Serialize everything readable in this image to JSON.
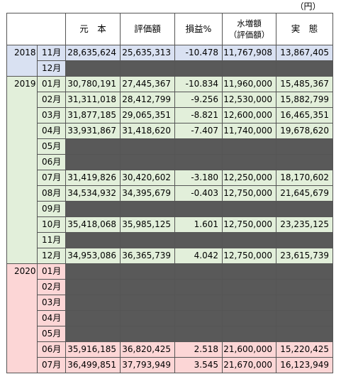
{
  "unit_label": "（円）",
  "headers": {
    "principal": "元　本",
    "valuation": "評価額",
    "pl_pct": "損益%",
    "water_line1": "水増額",
    "water_line2": "（評価額）",
    "actual": "実　態"
  },
  "groups": [
    {
      "year": "2018",
      "rows": [
        {
          "month": "11月",
          "principal": "28,635,624",
          "valuation": "25,635,313",
          "pl": "-10.478",
          "water": "11,767,908",
          "actual": "13,867,405"
        },
        {
          "month": "12月",
          "empty": true
        }
      ]
    },
    {
      "year": "2019",
      "rows": [
        {
          "month": "01月",
          "principal": "30,780,191",
          "valuation": "27,445,367",
          "pl": "-10.834",
          "water": "11,960,000",
          "actual": "15,485,367"
        },
        {
          "month": "02月",
          "principal": "31,311,018",
          "valuation": "28,412,799",
          "pl": "-9.256",
          "water": "12,530,000",
          "actual": "15,882,799"
        },
        {
          "month": "03月",
          "principal": "31,877,185",
          "valuation": "29,065,351",
          "pl": "-8.821",
          "water": "12,600,000",
          "actual": "16,465,351"
        },
        {
          "month": "04月",
          "principal": "33,931,867",
          "valuation": "31,418,620",
          "pl": "-7.407",
          "water": "11,740,000",
          "actual": "19,678,620"
        },
        {
          "month": "05月",
          "empty": true
        },
        {
          "month": "06月",
          "empty": true
        },
        {
          "month": "07月",
          "principal": "31,419,826",
          "valuation": "30,420,602",
          "pl": "-3.180",
          "water": "12,250,000",
          "actual": "18,170,602"
        },
        {
          "month": "08月",
          "principal": "34,534,932",
          "valuation": "34,395,679",
          "pl": "-0.403",
          "water": "12,750,000",
          "actual": "21,645,679"
        },
        {
          "month": "09月",
          "empty": true
        },
        {
          "month": "10月",
          "principal": "35,418,068",
          "valuation": "35,985,125",
          "pl": "1.601",
          "water": "12,750,000",
          "actual": "23,235,125"
        },
        {
          "month": "11月",
          "empty": true
        },
        {
          "month": "12月",
          "principal": "34,953,086",
          "valuation": "36,365,739",
          "pl": "4.042",
          "water": "12,750,000",
          "actual": "23,615,739"
        }
      ]
    },
    {
      "year": "2020",
      "rows": [
        {
          "month": "01月",
          "empty": true
        },
        {
          "month": "02月",
          "empty": true
        },
        {
          "month": "03月",
          "empty": true
        },
        {
          "month": "04月",
          "empty": true
        },
        {
          "month": "05月",
          "empty": true
        },
        {
          "month": "06月",
          "principal": "35,916,185",
          "valuation": "36,820,425",
          "pl": "2.518",
          "water": "21,600,000",
          "actual": "15,220,425"
        },
        {
          "month": "07月",
          "principal": "36,499,851",
          "valuation": "37,793,949",
          "pl": "3.545",
          "water": "21,670,000",
          "actual": "16,123,949"
        }
      ]
    }
  ]
}
